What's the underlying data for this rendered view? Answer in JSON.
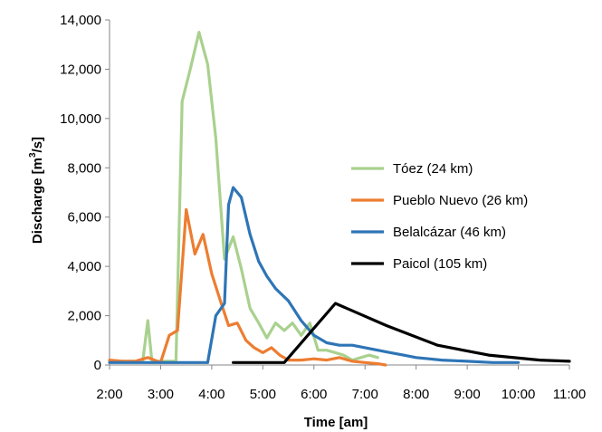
{
  "chart_data": {
    "type": "line",
    "xlabel": "Time [am]",
    "ylabel": "Discharge [m³/s]",
    "ylabel_parts": {
      "before": "Discharge [m",
      "sup": "3",
      "after": "/s]"
    },
    "xlim": [
      2,
      11
    ],
    "ylim": [
      0,
      14000
    ],
    "x_ticks": [
      2,
      3,
      4,
      5,
      6,
      7,
      8,
      9,
      10,
      11
    ],
    "x_tick_labels": [
      "2:00",
      "3:00",
      "4:00",
      "5:00",
      "6:00",
      "7:00",
      "8:00",
      "9:00",
      "10:00",
      "11:00"
    ],
    "y_ticks": [
      0,
      2000,
      4000,
      6000,
      8000,
      10000,
      12000,
      14000
    ],
    "y_tick_labels": [
      "0",
      "2,000",
      "4,000",
      "6,000",
      "8,000",
      "10,000",
      "12,000",
      "14,000"
    ],
    "grid": false,
    "legend_position": "right-middle",
    "series": [
      {
        "name": "Tóez (24 km)",
        "color": "#a9d18e",
        "points": [
          [
            2.0,
            150
          ],
          [
            2.25,
            150
          ],
          [
            2.5,
            150
          ],
          [
            2.65,
            150
          ],
          [
            2.75,
            1800
          ],
          [
            2.83,
            150
          ],
          [
            3.0,
            150
          ],
          [
            3.17,
            150
          ],
          [
            3.3,
            150
          ],
          [
            3.42,
            10700
          ],
          [
            3.58,
            12000
          ],
          [
            3.75,
            13500
          ],
          [
            3.92,
            12200
          ],
          [
            4.08,
            9200
          ],
          [
            4.25,
            4300
          ],
          [
            4.42,
            5200
          ],
          [
            4.58,
            3900
          ],
          [
            4.75,
            2300
          ],
          [
            4.92,
            1700
          ],
          [
            5.08,
            1100
          ],
          [
            5.25,
            1700
          ],
          [
            5.42,
            1400
          ],
          [
            5.58,
            1700
          ],
          [
            5.75,
            1200
          ],
          [
            5.92,
            1700
          ],
          [
            6.08,
            600
          ],
          [
            6.25,
            600
          ],
          [
            6.42,
            500
          ],
          [
            6.58,
            400
          ],
          [
            6.75,
            200
          ],
          [
            6.92,
            300
          ],
          [
            7.08,
            400
          ],
          [
            7.25,
            300
          ]
        ]
      },
      {
        "name": "Pueblo Nuevo (26 km)",
        "color": "#ed7d31",
        "points": [
          [
            2.0,
            200
          ],
          [
            2.25,
            150
          ],
          [
            2.5,
            150
          ],
          [
            2.75,
            300
          ],
          [
            3.0,
            100
          ],
          [
            3.17,
            1200
          ],
          [
            3.33,
            1400
          ],
          [
            3.5,
            6300
          ],
          [
            3.67,
            4500
          ],
          [
            3.83,
            5300
          ],
          [
            4.0,
            3700
          ],
          [
            4.17,
            2600
          ],
          [
            4.33,
            1600
          ],
          [
            4.5,
            1700
          ],
          [
            4.67,
            1000
          ],
          [
            4.83,
            700
          ],
          [
            5.0,
            500
          ],
          [
            5.17,
            700
          ],
          [
            5.33,
            400
          ],
          [
            5.5,
            200
          ],
          [
            5.75,
            200
          ],
          [
            6.0,
            250
          ],
          [
            6.25,
            200
          ],
          [
            6.5,
            300
          ],
          [
            6.75,
            150
          ],
          [
            7.0,
            100
          ],
          [
            7.25,
            50
          ],
          [
            7.4,
            0
          ]
        ]
      },
      {
        "name": "Belalcázar (46 km)",
        "color": "#2e75b6",
        "points": [
          [
            2.0,
            100
          ],
          [
            3.0,
            100
          ],
          [
            3.92,
            100
          ],
          [
            4.08,
            2000
          ],
          [
            4.25,
            2500
          ],
          [
            4.33,
            6500
          ],
          [
            4.42,
            7200
          ],
          [
            4.58,
            6800
          ],
          [
            4.75,
            5300
          ],
          [
            4.92,
            4200
          ],
          [
            5.08,
            3600
          ],
          [
            5.25,
            3100
          ],
          [
            5.5,
            2600
          ],
          [
            5.75,
            1800
          ],
          [
            6.0,
            1200
          ],
          [
            6.25,
            900
          ],
          [
            6.5,
            800
          ],
          [
            6.75,
            800
          ],
          [
            7.0,
            700
          ],
          [
            7.25,
            600
          ],
          [
            7.5,
            500
          ],
          [
            7.75,
            400
          ],
          [
            8.0,
            300
          ],
          [
            8.25,
            250
          ],
          [
            8.5,
            200
          ],
          [
            9.0,
            150
          ],
          [
            9.5,
            100
          ],
          [
            10.0,
            100
          ]
        ]
      },
      {
        "name": "Paicol (105 km)",
        "color": "#000000",
        "points": [
          [
            4.42,
            100
          ],
          [
            5.42,
            100
          ],
          [
            6.42,
            2500
          ],
          [
            7.42,
            1600
          ],
          [
            8.42,
            800
          ],
          [
            9.42,
            400
          ],
          [
            10.42,
            200
          ],
          [
            11.0,
            150
          ]
        ]
      }
    ]
  }
}
